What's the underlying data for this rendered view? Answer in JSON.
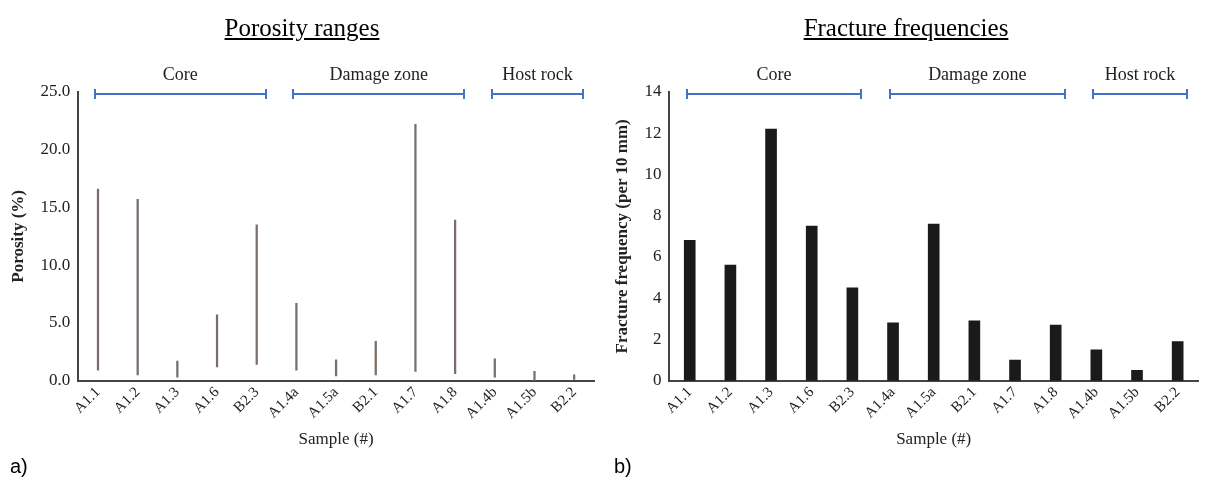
{
  "chart_data": [
    {
      "type": "bar",
      "title": "Porosity ranges",
      "xlabel": "Sample (#)",
      "ylabel": "Porosity (%)",
      "categories": [
        "A1.1",
        "A1.2",
        "A1.3",
        "A1.6",
        "B2.3",
        "A1.4a",
        "A1.5a",
        "B2.1",
        "A1.7",
        "A1.8",
        "A1.4b",
        "A1.5b",
        "B2.2"
      ],
      "base": [
        0.9,
        0.5,
        0.3,
        1.2,
        1.4,
        0.9,
        0.4,
        0.5,
        0.8,
        0.6,
        0.3,
        0.0,
        0.1
      ],
      "values": [
        15.7,
        15.2,
        1.4,
        4.5,
        12.1,
        5.8,
        1.4,
        2.9,
        21.4,
        13.3,
        1.6,
        0.8,
        0.4
      ],
      "color": "#7a6e68",
      "ylim": [
        0,
        25
      ],
      "yticks": [
        {
          "value": 0,
          "label": "0.0"
        },
        {
          "value": 5,
          "label": "5.0"
        },
        {
          "value": 10,
          "label": "10.0"
        },
        {
          "value": 15,
          "label": "15.0"
        },
        {
          "value": 20,
          "label": "20.0"
        },
        {
          "value": 25,
          "label": "25.0"
        }
      ],
      "annotations": [
        "a)",
        "Core",
        "Damage zone",
        "Host rock"
      ],
      "grid": false,
      "legend": false
    },
    {
      "type": "bar",
      "title": "Fracture frequencies",
      "xlabel": "Sample (#)",
      "ylabel": "Fracture frequency (per 10 mm)",
      "categories": [
        "A1.1",
        "A1.2",
        "A1.3",
        "A1.6",
        "B2.3",
        "A1.4a",
        "A1.5a",
        "B2.1",
        "A1.7",
        "A1.8",
        "A1.4b",
        "A1.5b",
        "B2.2"
      ],
      "values": [
        6.8,
        5.6,
        12.2,
        7.5,
        4.5,
        2.8,
        7.6,
        2.9,
        1.0,
        2.7,
        1.5,
        0.5,
        1.9
      ],
      "color": "#1a1a1a",
      "ylim": [
        0,
        14
      ],
      "yticks": [
        0,
        2,
        4,
        6,
        8,
        10,
        12,
        14
      ],
      "annotations": [
        "b)",
        "Core",
        "Damage zone",
        "Host rock"
      ],
      "grid": false,
      "legend": false
    }
  ]
}
